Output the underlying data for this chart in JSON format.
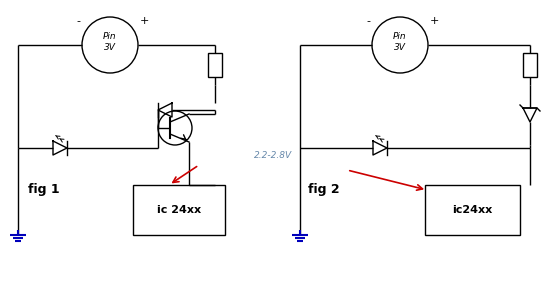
{
  "bg_color": "#ffffff",
  "lc": "#000000",
  "red": "#cc0000",
  "blue": "#0000bb",
  "fig1_label": "fig 1",
  "fig2_label": "fig 2",
  "ic1_label": "ic 24xx",
  "ic2_label": "ic24xx",
  "bat_label": "Pin\n3V",
  "volt_label": "2.2-2.8V",
  "fig_w": 5.5,
  "fig_h": 2.93,
  "dpi": 100
}
